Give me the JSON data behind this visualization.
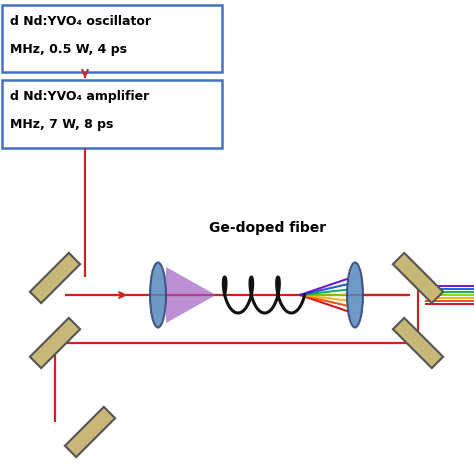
{
  "bg_color": "#ffffff",
  "box1_text_line1": "d Nd:YVO₄ oscillator",
  "box1_text_line2": "MHz, 0.5 W, 4 ps",
  "box2_text_line1": "d Nd:YVO₄ amplifier",
  "box2_text_line2": "MHz, 7 W, 8 ps",
  "fiber_label": "Ge-doped fiber",
  "box_border_color": "#4472c4",
  "arrow_color": "#cc2222",
  "text_color": "#000000",
  "figsize": [
    4.74,
    4.74
  ],
  "dpi": 100,
  "mirror_color": "#c8b878",
  "mirror_edge": "#555555",
  "lens_color": "#5588bb",
  "lens_edge": "#334477",
  "coil_color": "#111111",
  "purple_color": "#9955bb",
  "spectrum_colors": [
    "#cc0000",
    "#ee4400",
    "#ffaa00",
    "#88cc00",
    "#00aa44",
    "#0055cc",
    "#6600cc"
  ],
  "red_line_color": "#cc2222",
  "red_line_lw": 1.6
}
